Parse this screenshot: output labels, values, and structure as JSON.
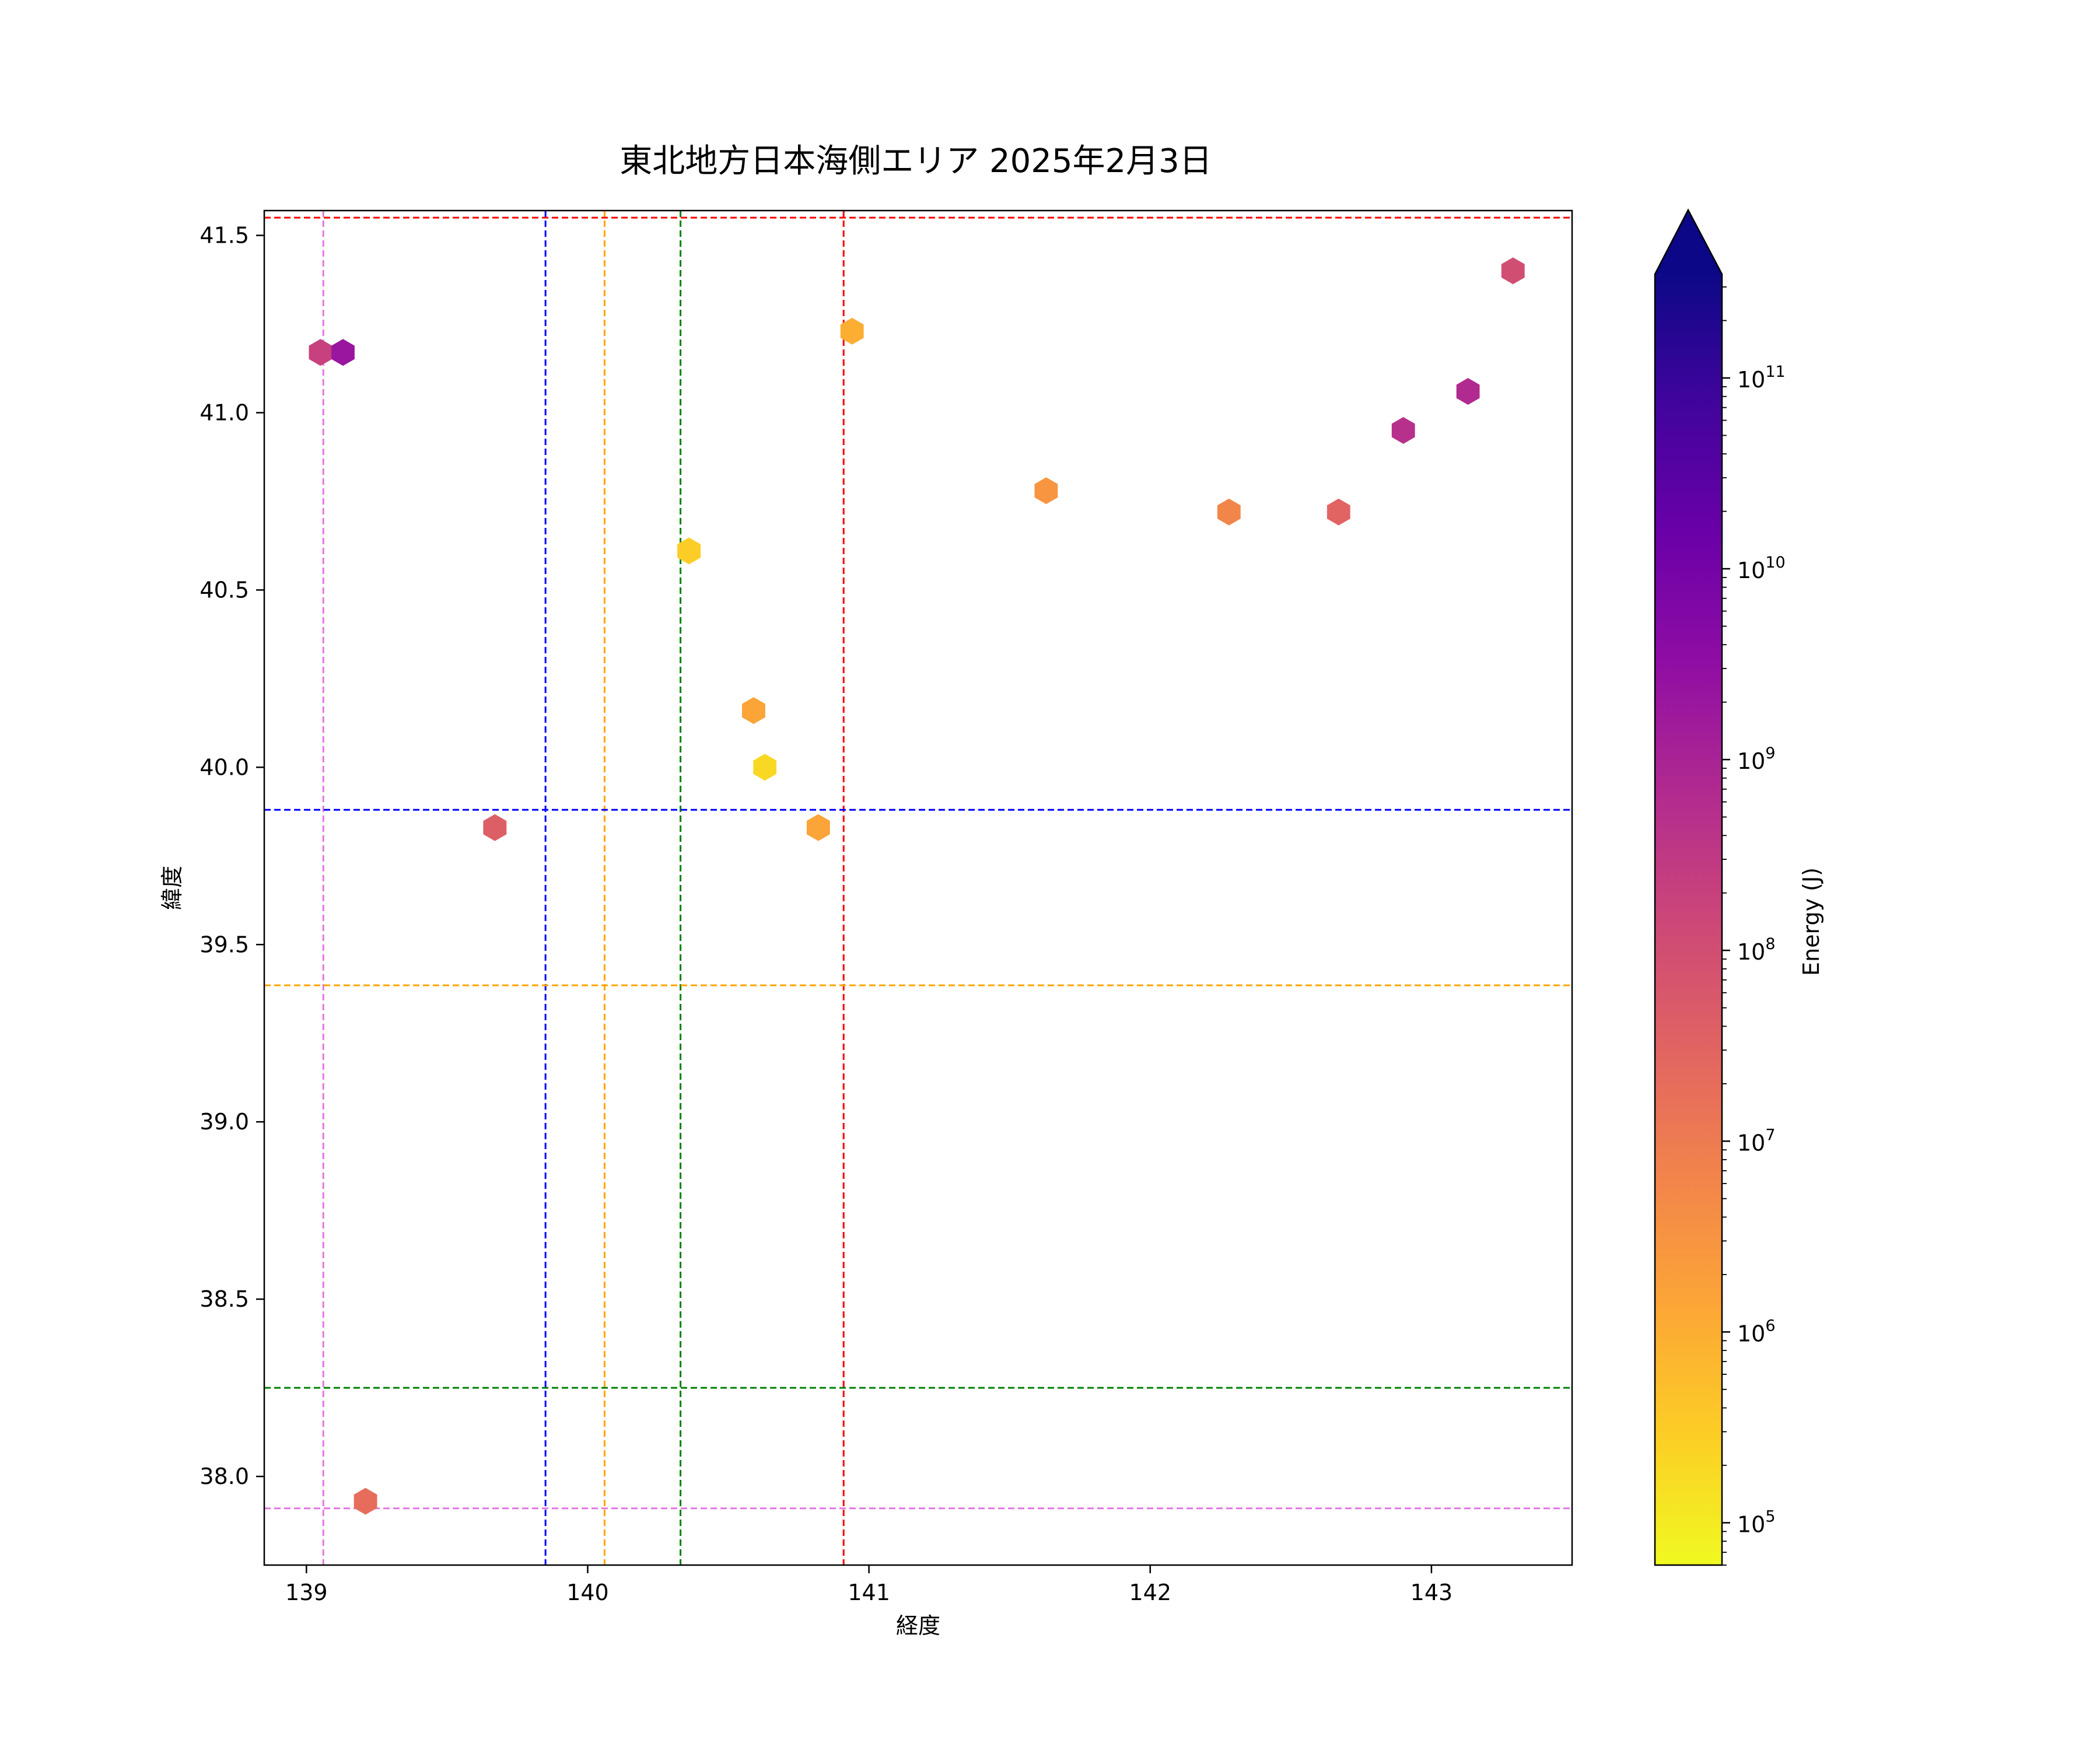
{
  "chart_data": {
    "type": "scatter",
    "marker": "hexagon",
    "title": "東北地方日本海側エリア 2025年2月3日",
    "xlabel": "経度",
    "ylabel": "緯度",
    "xlim": [
      138.85,
      143.5
    ],
    "ylim": [
      37.75,
      41.57
    ],
    "xticks": [
      139,
      140,
      141,
      142,
      143
    ],
    "xtick_labels": [
      "139",
      "140",
      "141",
      "142",
      "143"
    ],
    "yticks": [
      38.0,
      38.5,
      39.0,
      39.5,
      40.0,
      40.5,
      41.0,
      41.5
    ],
    "ytick_labels": [
      "38.0",
      "38.5",
      "39.0",
      "39.5",
      "40.0",
      "40.5",
      "41.0",
      "41.5"
    ],
    "grid": false,
    "colorbar": {
      "label": "Energy (J)",
      "scale": "log",
      "colormap": "plasma_r",
      "range": [
        60000,
        350000000000
      ],
      "extend": "max",
      "ticks": [
        100000,
        1000000,
        10000000,
        100000000,
        1000000000,
        10000000000,
        100000000000
      ],
      "tick_bases": [
        "10",
        "10",
        "10",
        "10",
        "10",
        "10",
        "10"
      ],
      "tick_exponents": [
        "5",
        "6",
        "7",
        "8",
        "9",
        "10",
        "11"
      ]
    },
    "reference_lines": [
      {
        "orientation": "vertical",
        "value": 139.06,
        "color": "#e377e3"
      },
      {
        "orientation": "vertical",
        "value": 139.85,
        "color": "#0000ff"
      },
      {
        "orientation": "vertical",
        "value": 140.06,
        "color": "#ffa500"
      },
      {
        "orientation": "vertical",
        "value": 140.33,
        "color": "#008000"
      },
      {
        "orientation": "vertical",
        "value": 140.91,
        "color": "#ff0000"
      },
      {
        "orientation": "horizontal",
        "value": 41.55,
        "color": "#ff0000"
      },
      {
        "orientation": "horizontal",
        "value": 39.88,
        "color": "#0000ff"
      },
      {
        "orientation": "horizontal",
        "value": 39.385,
        "color": "#ffa500"
      },
      {
        "orientation": "horizontal",
        "value": 38.25,
        "color": "#008000"
      },
      {
        "orientation": "horizontal",
        "value": 37.91,
        "color": "#e377e3"
      }
    ],
    "points": [
      {
        "x": 139.05,
        "y": 41.17,
        "energy": 200000000
      },
      {
        "x": 139.13,
        "y": 41.17,
        "energy": 2000000000
      },
      {
        "x": 139.21,
        "y": 37.93,
        "energy": 20000000
      },
      {
        "x": 139.67,
        "y": 39.83,
        "energy": 40000000
      },
      {
        "x": 140.36,
        "y": 40.61,
        "energy": 300000
      },
      {
        "x": 140.59,
        "y": 40.16,
        "energy": 1500000
      },
      {
        "x": 140.63,
        "y": 40.0,
        "energy": 200000
      },
      {
        "x": 140.82,
        "y": 39.83,
        "energy": 1500000
      },
      {
        "x": 140.94,
        "y": 41.23,
        "energy": 1000000
      },
      {
        "x": 141.63,
        "y": 40.78,
        "energy": 3000000
      },
      {
        "x": 142.28,
        "y": 40.72,
        "energy": 6000000
      },
      {
        "x": 142.67,
        "y": 40.72,
        "energy": 30000000
      },
      {
        "x": 142.9,
        "y": 40.95,
        "energy": 500000000
      },
      {
        "x": 143.13,
        "y": 41.06,
        "energy": 700000000
      },
      {
        "x": 143.29,
        "y": 41.4,
        "energy": 100000000
      }
    ]
  }
}
